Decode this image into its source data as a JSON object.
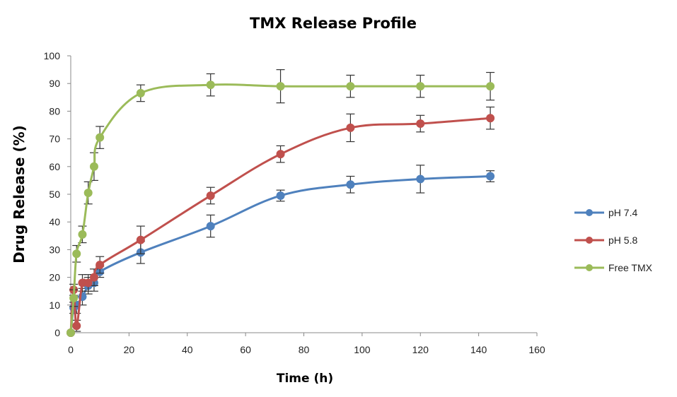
{
  "chart_data": {
    "type": "line",
    "title": "TMX Release Profile",
    "xlabel": "Time (h)",
    "ylabel": "Drug Release (%)",
    "xlim": [
      0,
      160
    ],
    "ylim": [
      0,
      100
    ],
    "x_ticks": [
      0,
      20,
      40,
      60,
      80,
      100,
      120,
      140,
      160
    ],
    "y_ticks": [
      0,
      10,
      20,
      30,
      40,
      50,
      60,
      70,
      80,
      90,
      100
    ],
    "grid": false,
    "legend_position": "right",
    "smooth": true,
    "series": [
      {
        "name": "pH 7.4",
        "color": "#4F81BD",
        "x": [
          0,
          1,
          2,
          4,
          6,
          8,
          10,
          24,
          48,
          72,
          96,
          120,
          144
        ],
        "y": [
          0,
          9,
          10,
          13,
          17,
          18,
          22,
          29,
          38.5,
          49.5,
          53.5,
          55.5,
          56.5
        ],
        "err": [
          0,
          2,
          3,
          3,
          3,
          3,
          2,
          4,
          4,
          2,
          3,
          5,
          2
        ]
      },
      {
        "name": "pH 5.8",
        "color": "#C0504D",
        "x": [
          0,
          1,
          2,
          4,
          6,
          8,
          10,
          24,
          48,
          72,
          96,
          120,
          144
        ],
        "y": [
          0,
          15.5,
          2.5,
          18,
          18,
          20,
          24.5,
          33.5,
          49.5,
          64.5,
          74,
          75.5,
          77.5
        ],
        "err": [
          0,
          2,
          2,
          3,
          3,
          3,
          3,
          5,
          3,
          3,
          5,
          3,
          4
        ]
      },
      {
        "name": "Free TMX",
        "color": "#9BBB59",
        "x": [
          0,
          1,
          2,
          4,
          6,
          8,
          10,
          24,
          48,
          72,
          96,
          120,
          144
        ],
        "y": [
          0,
          12.5,
          28.5,
          35.5,
          50.5,
          60,
          70.5,
          86.5,
          89.5,
          89,
          89,
          89,
          89
        ],
        "err": [
          0,
          3,
          3,
          3,
          4,
          5,
          4,
          3,
          4,
          6,
          4,
          4,
          5
        ]
      }
    ]
  }
}
